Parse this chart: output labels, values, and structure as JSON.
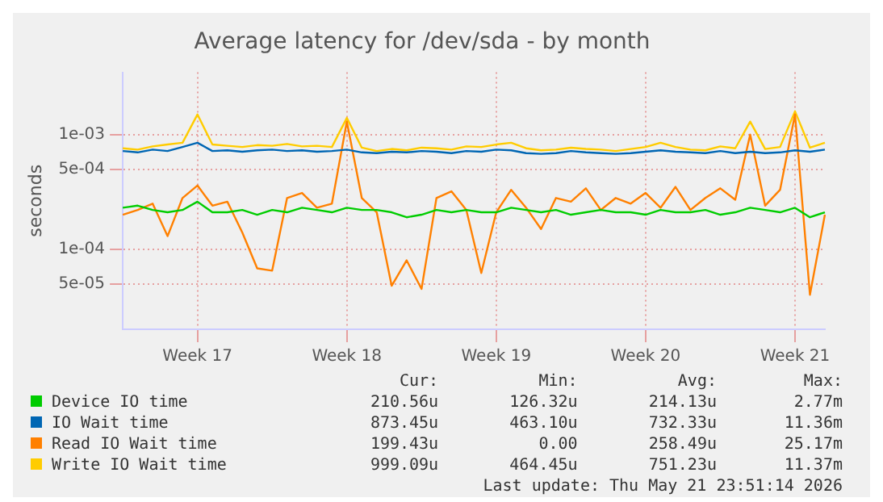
{
  "chart_data": {
    "type": "line",
    "title": "Average latency for /dev/sda - by month",
    "ylabel": "seconds",
    "categories": [
      null,
      null,
      null,
      null,
      null,
      "Week 17",
      null,
      null,
      null,
      null,
      null,
      null,
      null,
      null,
      null,
      "Week 18",
      null,
      null,
      null,
      null,
      null,
      null,
      null,
      null,
      null,
      "Week 19",
      null,
      null,
      null,
      null,
      null,
      null,
      null,
      null,
      null,
      "Week 20",
      null,
      null,
      null,
      null,
      null,
      null,
      null,
      null,
      null,
      "Week 21",
      null,
      null
    ],
    "series": [
      {
        "name": "Device IO time",
        "color": "#00cc00",
        "values": [
          0.00023,
          0.00024,
          0.00022,
          0.00021,
          0.00022,
          0.00026,
          0.00021,
          0.00021,
          0.00022,
          0.0002,
          0.00022,
          0.00021,
          0.00023,
          0.00022,
          0.00021,
          0.00023,
          0.00022,
          0.00022,
          0.00021,
          0.00019,
          0.0002,
          0.00022,
          0.00021,
          0.00022,
          0.00021,
          0.00021,
          0.00023,
          0.00022,
          0.00021,
          0.00022,
          0.0002,
          0.00021,
          0.00022,
          0.00021,
          0.00021,
          0.0002,
          0.00022,
          0.00021,
          0.00021,
          0.00022,
          0.0002,
          0.00021,
          0.00023,
          0.00022,
          0.00021,
          0.00023,
          0.00019,
          0.00021
        ]
      },
      {
        "name": "IO Wait time",
        "color": "#0066b3",
        "values": [
          0.00072,
          0.0007,
          0.00074,
          0.00072,
          0.00078,
          0.00085,
          0.00072,
          0.00073,
          0.00071,
          0.00073,
          0.00074,
          0.00072,
          0.00073,
          0.00071,
          0.00072,
          0.00074,
          0.0007,
          0.00069,
          0.00071,
          0.0007,
          0.00072,
          0.00071,
          0.00069,
          0.00072,
          0.00071,
          0.00074,
          0.00073,
          0.00069,
          0.00068,
          0.00069,
          0.00072,
          0.0007,
          0.00069,
          0.00068,
          0.00069,
          0.00071,
          0.00073,
          0.00071,
          0.0007,
          0.00069,
          0.00072,
          0.00069,
          0.00071,
          0.00069,
          0.0007,
          0.00073,
          0.00071,
          0.00074
        ]
      },
      {
        "name": "Read IO Wait time",
        "color": "#ff8000",
        "values": [
          0.0002,
          0.00022,
          0.00025,
          0.00013,
          0.00028,
          0.00036,
          0.00024,
          0.00026,
          0.00014,
          6.8e-05,
          6.5e-05,
          0.00028,
          0.00031,
          0.00023,
          0.00025,
          0.0013,
          0.00028,
          0.00021,
          4.8e-05,
          8e-05,
          4.5e-05,
          0.00028,
          0.00032,
          0.00022,
          6.2e-05,
          0.00021,
          0.00033,
          0.00023,
          0.00015,
          0.00028,
          0.00026,
          0.00034,
          0.00022,
          0.00028,
          0.00025,
          0.00031,
          0.00023,
          0.00035,
          0.00022,
          0.00028,
          0.00034,
          0.00027,
          0.001,
          0.00024,
          0.00033,
          0.0015,
          4e-05,
          0.0002
        ]
      },
      {
        "name": "Write IO Wait time",
        "color": "#ffcc00",
        "values": [
          0.00076,
          0.00074,
          0.00079,
          0.00082,
          0.00085,
          0.0015,
          0.00082,
          0.0008,
          0.00078,
          0.00081,
          0.0008,
          0.00083,
          0.00079,
          0.0008,
          0.00078,
          0.0014,
          0.00077,
          0.00072,
          0.00075,
          0.00073,
          0.00077,
          0.00076,
          0.00074,
          0.00079,
          0.00078,
          0.00082,
          0.00085,
          0.00076,
          0.00073,
          0.00074,
          0.00077,
          0.00075,
          0.00074,
          0.00072,
          0.00075,
          0.00078,
          0.00085,
          0.00078,
          0.00074,
          0.00073,
          0.00079,
          0.00076,
          0.0013,
          0.00075,
          0.00078,
          0.0016,
          0.00077,
          0.00085
        ]
      }
    ],
    "ylim": [
      2e-05,
      0.0035
    ],
    "yticks": [
      {
        "value": 5e-05,
        "label": "5e-05"
      },
      {
        "value": 0.0001,
        "label": "1e-04"
      },
      {
        "value": 0.0005,
        "label": "5e-04"
      },
      {
        "value": 0.001,
        "label": "1e-03"
      }
    ],
    "log": "y",
    "grid": true,
    "legend": "bottom",
    "marker": "none",
    "line_style": "solid",
    "annotations": [
      "Cur:",
      "Min:",
      "Avg:",
      "Max:",
      "210.56u",
      "126.32u",
      "214.13u",
      "2.77m",
      "873.45u",
      "463.10u",
      "732.33u",
      "11.36m",
      "199.43u",
      "0.00",
      "258.49u",
      "25.17m",
      "999.09u",
      "464.45u",
      "751.23u",
      "11.37m",
      "Last update: Thu May 21 23:51:14 2026"
    ]
  }
}
